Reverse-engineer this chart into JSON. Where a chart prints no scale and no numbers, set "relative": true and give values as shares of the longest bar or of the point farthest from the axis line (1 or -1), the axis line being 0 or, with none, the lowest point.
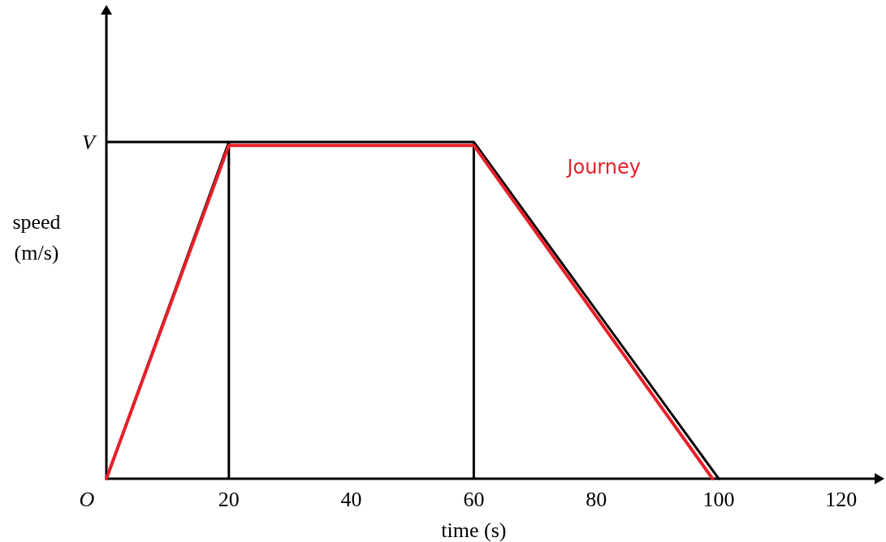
{
  "chart_data": {
    "type": "line",
    "relative": true,
    "xlabel": "time (s)",
    "ylabel": "speed (m/s)",
    "xlim": [
      0,
      126
    ],
    "xticks": [
      20,
      40,
      60,
      80,
      100,
      120
    ],
    "annotations": [
      {
        "text": "O",
        "x": 0,
        "y": 0
      }
    ],
    "series": [
      {
        "color": "#000000",
        "x": [
          0,
          20,
          60,
          100
        ],
        "values": [
          0,
          1,
          1,
          0
        ]
      },
      {
        "name": "Journey",
        "color": "#e8202a",
        "x": [
          0,
          20,
          60,
          99
        ],
        "values": [
          0,
          0.99,
          0.99,
          0
        ]
      }
    ],
    "ref_lines": [
      {
        "axis": "y",
        "value": 1,
        "label": "V",
        "color": "#000000"
      },
      {
        "axis": "x",
        "value": 20,
        "color": "#000000"
      },
      {
        "axis": "x",
        "value": 60,
        "color": "#000000"
      }
    ],
    "grid": false,
    "marker": "none",
    "line_style": "solid"
  }
}
